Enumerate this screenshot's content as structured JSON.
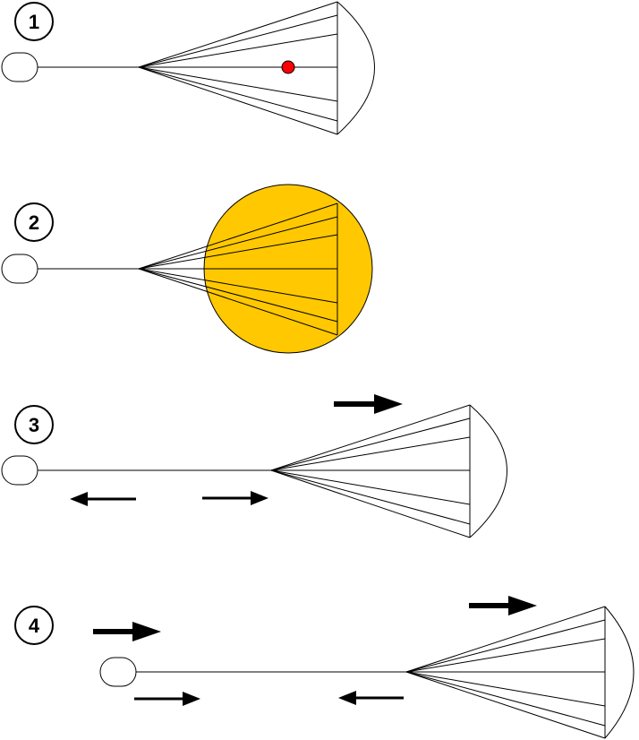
{
  "colors": {
    "line": "#000000",
    "fireball": "#FFC800",
    "detonator": "#FF0000",
    "background": "#FFFFFF"
  },
  "steps": [
    {
      "label": "1",
      "description_icon": "parachute-with-red-detonator-icon"
    },
    {
      "label": "2",
      "description_icon": "parachute-with-fireball-icon"
    },
    {
      "label": "3",
      "description_icon": "extended-line-with-forces-icon"
    },
    {
      "label": "4",
      "description_icon": "payload-pulled-forward-icon"
    }
  ]
}
